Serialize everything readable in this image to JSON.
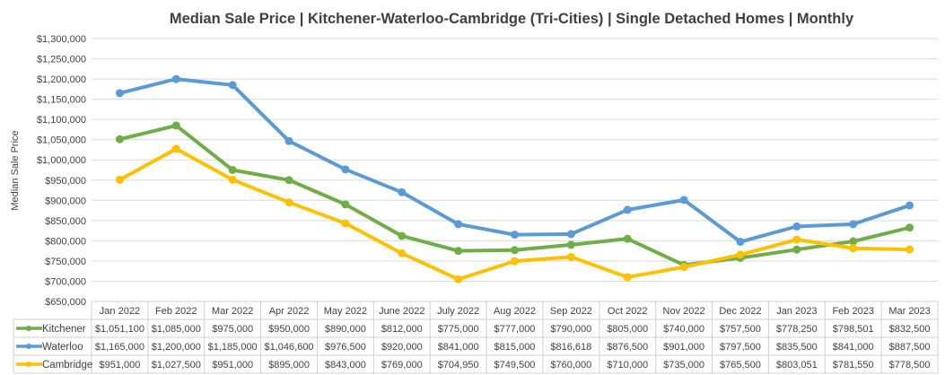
{
  "chart_data": {
    "type": "line",
    "title": "Median Sale Price | Kitchener-Waterloo-Cambridge (Tri-Cities) | Single Detached Homes | Monthly",
    "xlabel": "",
    "ylabel": "Median Sale Price",
    "ylim": [
      650000,
      1300000
    ],
    "ytick_step": 50000,
    "grid": true,
    "legend": "data-table",
    "categories": [
      "Jan 2022",
      "Feb 2022",
      "Mar 2022",
      "Apr 2022",
      "May 2022",
      "June 2022",
      "July 2022",
      "Aug 2022",
      "Sep 2022",
      "Oct 2022",
      "Nov 2022",
      "Dec 2022",
      "Jan 2023",
      "Feb 2023",
      "Mar 2023"
    ],
    "series": [
      {
        "name": "Kitchener",
        "color": "#70AD47",
        "values": [
          1051100,
          1085000,
          975000,
          950000,
          890000,
          812000,
          775000,
          777000,
          790000,
          805000,
          740000,
          757500,
          778250,
          798501,
          832500
        ]
      },
      {
        "name": "Waterloo",
        "color": "#5B9BD5",
        "values": [
          1165000,
          1200000,
          1185000,
          1046600,
          976500,
          920000,
          841000,
          815000,
          816618,
          876500,
          901000,
          797500,
          835500,
          841000,
          887500
        ]
      },
      {
        "name": "Cambridge",
        "color": "#FFC000",
        "values": [
          951000,
          1027500,
          951000,
          895000,
          843000,
          769000,
          704950,
          749500,
          760000,
          710000,
          735000,
          765500,
          803051,
          781550,
          778500
        ]
      }
    ]
  }
}
